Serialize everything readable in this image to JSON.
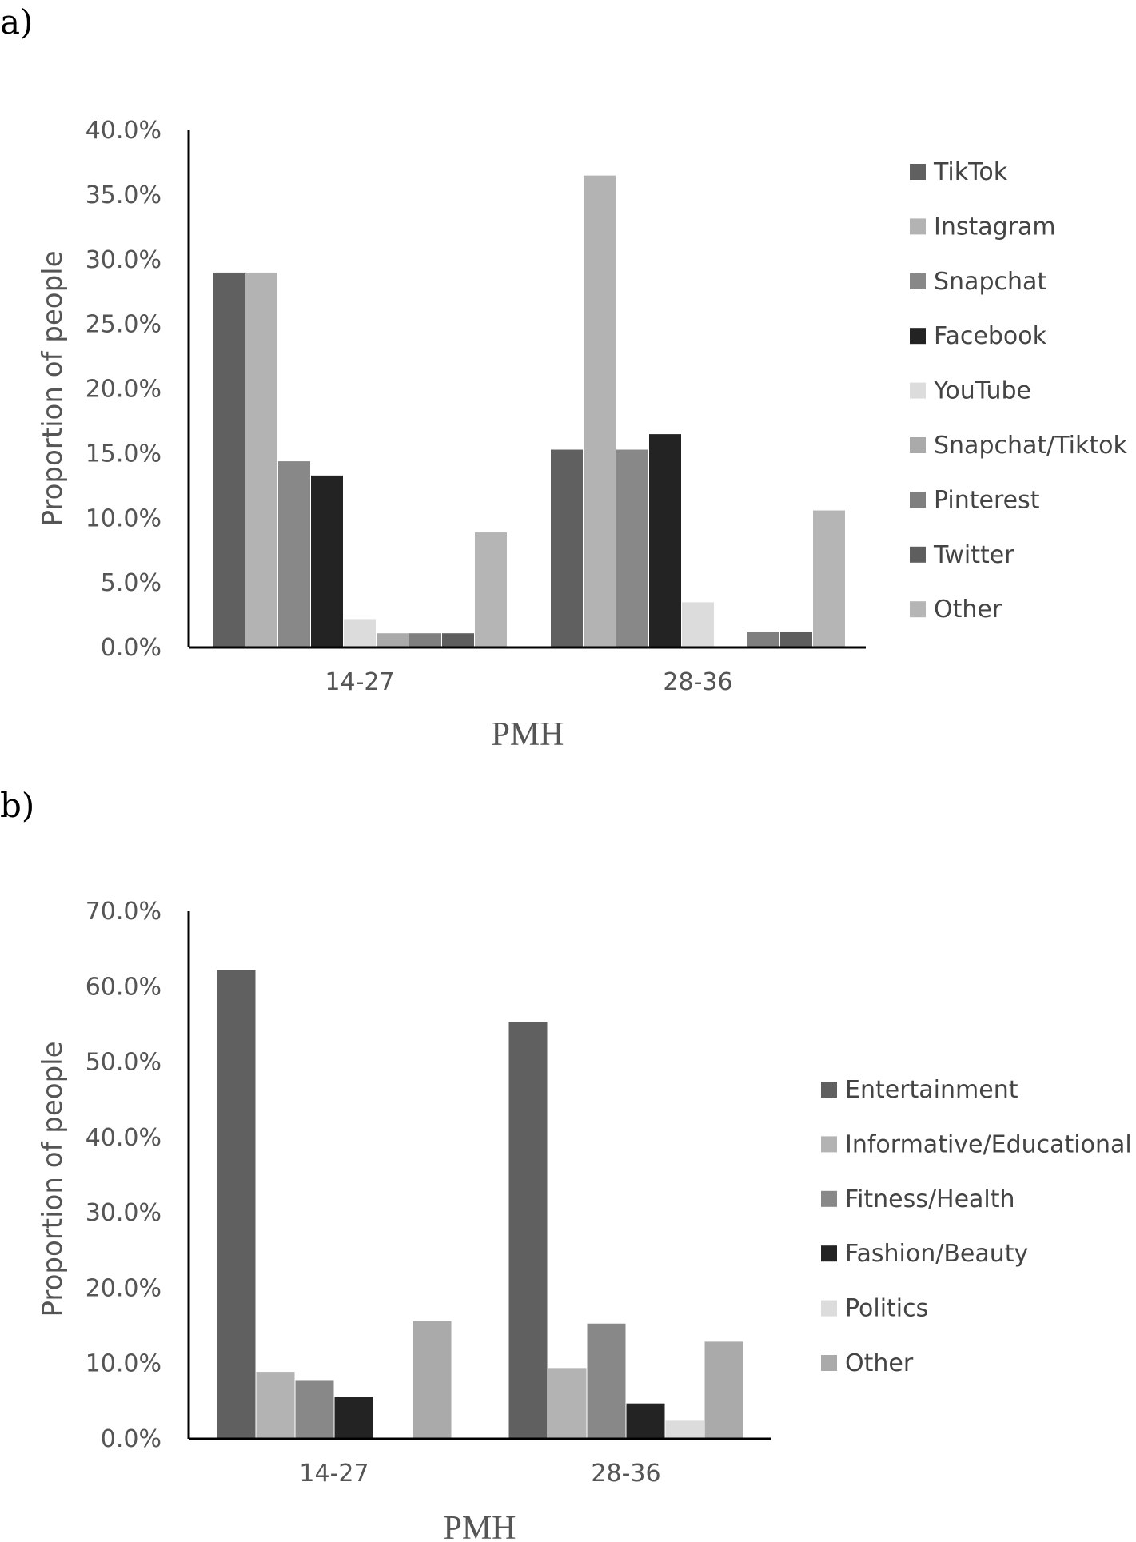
{
  "chart_data": [
    {
      "panel_label": "a)",
      "type": "bar",
      "categories": [
        "14-27",
        "28-36"
      ],
      "series": [
        {
          "name": "TikTok",
          "values": [
            29.0,
            15.3
          ],
          "color": "#606060"
        },
        {
          "name": "Instagram",
          "values": [
            29.0,
            36.5
          ],
          "color": "#b3b3b3"
        },
        {
          "name": "Snapchat",
          "values": [
            14.4,
            15.3
          ],
          "color": "#888888"
        },
        {
          "name": "Facebook",
          "values": [
            13.3,
            16.5
          ],
          "color": "#232323"
        },
        {
          "name": "YouTube",
          "values": [
            2.2,
            3.5
          ],
          "color": "#dcdcdc"
        },
        {
          "name": "Snapchat/Tiktok",
          "values": [
            1.1,
            0.0
          ],
          "color": "#aaaaaa"
        },
        {
          "name": "Pinterest",
          "values": [
            1.1,
            1.2
          ],
          "color": "#7f7f7f"
        },
        {
          "name": "Twitter",
          "values": [
            1.1,
            1.2
          ],
          "color": "#5e5e5e"
        },
        {
          "name": "Other",
          "values": [
            8.9,
            10.6
          ],
          "color": "#b5b5b5"
        }
      ],
      "y_ticks": [
        "0.0%",
        "5.0%",
        "10.0%",
        "15.0%",
        "20.0%",
        "25.0%",
        "30.0%",
        "35.0%",
        "40.0%"
      ],
      "ylim": [
        0,
        40
      ],
      "xlabel": "PMH",
      "ylabel": "Proportion of people",
      "legend_position": "right"
    },
    {
      "panel_label": "b)",
      "type": "bar",
      "categories": [
        "14-27",
        "28-36"
      ],
      "series": [
        {
          "name": "Entertainment",
          "values": [
            62.2,
            55.3
          ],
          "color": "#606060"
        },
        {
          "name": "Informative/Educational",
          "values": [
            8.9,
            9.4
          ],
          "color": "#b3b3b3"
        },
        {
          "name": "Fitness/Health",
          "values": [
            7.8,
            15.3
          ],
          "color": "#888888"
        },
        {
          "name": "Fashion/Beauty",
          "values": [
            5.6,
            4.7
          ],
          "color": "#232323"
        },
        {
          "name": "Politics",
          "values": [
            0.0,
            2.4
          ],
          "color": "#dcdcdc"
        },
        {
          "name": "Other",
          "values": [
            15.6,
            12.9
          ],
          "color": "#aaaaaa"
        }
      ],
      "y_ticks": [
        "0.0%",
        "10.0%",
        "20.0%",
        "30.0%",
        "40.0%",
        "50.0%",
        "60.0%",
        "70.0%"
      ],
      "ylim": [
        0,
        70
      ],
      "xlabel": "PMH",
      "ylabel": "Proportion of people",
      "legend_position": "right"
    }
  ]
}
